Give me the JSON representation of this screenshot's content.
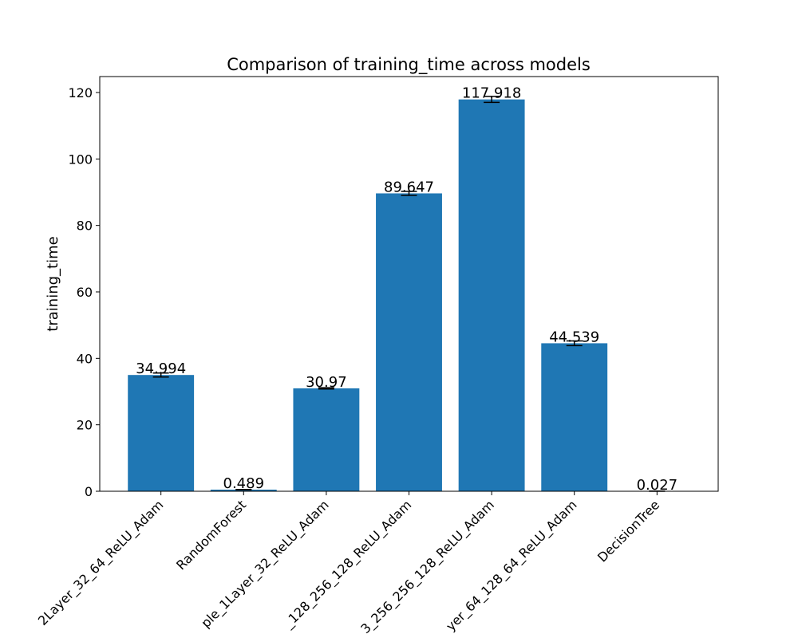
{
  "chart_data": {
    "type": "bar",
    "title": "Comparison of training_time across models",
    "y_label": "training_time",
    "categories": [
      "2Layer_32_64_ReLU_Adam",
      "RandomForest",
      "ple_1Layer_32_ReLU_Adam",
      "_128_256_128_ReLU_Adam",
      "3_256_256_128_ReLU_Adam",
      "yer_64_128_64_ReLU_Adam",
      "DecisionTree"
    ],
    "values": [
      34.994,
      0.489,
      30.97,
      89.647,
      117.918,
      44.539,
      0.027
    ],
    "errors": [
      0.6,
      0.05,
      0.2,
      0.6,
      0.9,
      0.7,
      0.0
    ],
    "color": "#1f77b4",
    "ylim": [
      0,
      124.8
    ],
    "yticks": [
      0,
      20,
      40,
      60,
      80,
      100,
      120
    ],
    "grid": false
  }
}
